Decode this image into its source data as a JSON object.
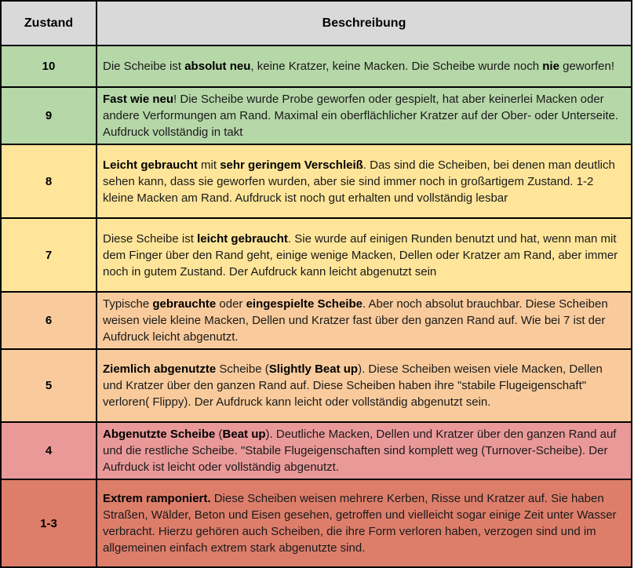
{
  "table": {
    "header": {
      "condition": "Zustand",
      "description": "Beschreibung"
    },
    "colors": {
      "header_bg": "#d9d9d9",
      "border": "#000000",
      "green": "#b6d7a8",
      "yellow": "#ffe599",
      "orange": "#f9cb9c",
      "light_red": "#ea9999",
      "dark_red": "#dd7e6b"
    },
    "rows": [
      {
        "condition": "10",
        "bg": "#b6d7a8",
        "description": [
          {
            "text": "Die Scheibe ist ",
            "bold": false
          },
          {
            "text": "absolut neu",
            "bold": true
          },
          {
            "text": ", keine Kratzer, keine Macken. Die Scheibe wurde noch ",
            "bold": false
          },
          {
            "text": "nie",
            "bold": true
          },
          {
            "text": " geworfen!",
            "bold": false
          }
        ]
      },
      {
        "condition": "9",
        "bg": "#b6d7a8",
        "description": [
          {
            "text": "Fast wie neu",
            "bold": true
          },
          {
            "text": "! Die Scheibe wurde Probe geworfen oder gespielt, hat aber keinerlei Macken oder andere Verformungen am Rand. Maximal ein oberflächlicher Kratzer auf der Ober- oder Unterseite. Aufdruck vollständig in takt",
            "bold": false
          }
        ]
      },
      {
        "condition": "8",
        "bg": "#ffe599",
        "description": [
          {
            "text": "Leicht gebraucht",
            "bold": true
          },
          {
            "text": " mit ",
            "bold": false
          },
          {
            "text": "sehr geringem Verschleiß",
            "bold": true
          },
          {
            "text": ". Das sind die Scheiben, bei denen man deutlich sehen kann, dass sie geworfen wurden, aber sie sind immer noch in großartigem Zustand. 1-2 kleine Macken am Rand. Aufdruck ist noch gut erhalten und vollständig lesbar",
            "bold": false
          }
        ]
      },
      {
        "condition": "7",
        "bg": "#ffe599",
        "description": [
          {
            "text": "Diese Scheibe ist ",
            "bold": false
          },
          {
            "text": "leicht gebraucht",
            "bold": true
          },
          {
            "text": ". Sie wurde auf einigen Runden benutzt und hat, wenn man mit dem Finger über den Rand geht, einige wenige Macken, Dellen oder Kratzer am Rand, aber immer noch in gutem Zustand. Der Aufdruck kann leicht abgenutzt sein",
            "bold": false
          }
        ]
      },
      {
        "condition": "6",
        "bg": "#f9cb9c",
        "description": [
          {
            "text": "Typische ",
            "bold": false
          },
          {
            "text": "gebrauchte",
            "bold": true
          },
          {
            "text": " oder ",
            "bold": false
          },
          {
            "text": "eingespielte Scheibe",
            "bold": true
          },
          {
            "text": ". Aber noch absolut brauchbar. Diese Scheiben weisen viele kleine Macken, Dellen und Kratzer fast über den ganzen Rand auf. Wie bei 7 ist der Aufdruck leicht abgenutzt.",
            "bold": false
          }
        ]
      },
      {
        "condition": "5",
        "bg": "#f9cb9c",
        "description": [
          {
            "text": "Ziemlich abgenutzte",
            "bold": true
          },
          {
            "text": " Scheibe (",
            "bold": false
          },
          {
            "text": "Slightly Beat up",
            "bold": true
          },
          {
            "text": "). Diese Scheiben weisen viele Macken, Dellen und Kratzer über den ganzen Rand auf. Diese Scheiben haben ihre \"stabile Flugeigenschaft\" verloren( Flippy). Der Aufdruck kann leicht oder vollständig abgenutzt sein.",
            "bold": false
          }
        ]
      },
      {
        "condition": "4",
        "bg": "#ea9999",
        "description": [
          {
            "text": "Abgenutzte Scheibe",
            "bold": true
          },
          {
            "text": " (",
            "bold": false
          },
          {
            "text": "Beat up",
            "bold": true
          },
          {
            "text": "). Deutliche  Macken, Dellen und Kratzer über den ganzen Rand auf und die restliche Scheibe. \"Stabile Flugeigenschaften sind komplett weg (Turnover-Scheibe). Der Aufrduck ist leicht oder vollständig abgenutzt.",
            "bold": false
          }
        ]
      },
      {
        "condition": "1-3",
        "bg": "#dd7e6b",
        "description": [
          {
            "text": "Extrem ramponiert.",
            "bold": true
          },
          {
            "text": " Diese Scheiben weisen mehrere Kerben, Risse und Kratzer auf. Sie haben Straßen, Wälder, Beton und Eisen gesehen, getroffen und vielleicht sogar einige Zeit unter Wasser verbracht. Hierzu gehören auch Scheiben, die ihre Form verloren haben, verzogen sind und im allgemeinen einfach extrem stark abgenutzte sind.",
            "bold": false
          }
        ]
      }
    ]
  }
}
